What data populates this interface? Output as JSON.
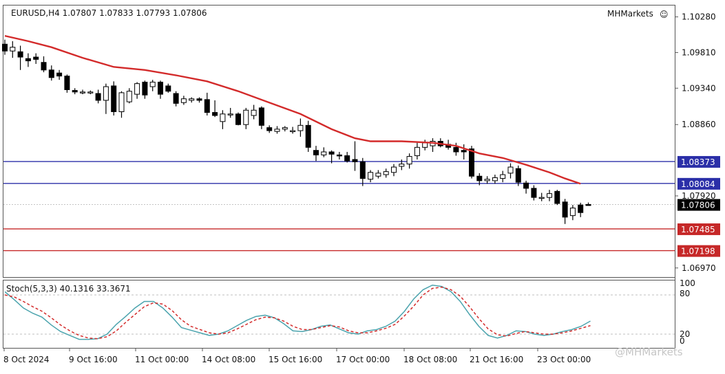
{
  "header": {
    "symbol_info": "EURUSD,H4  1.07807 1.07833 1.07793 1.07806",
    "broker": "MHMarkets",
    "smiley": "☺"
  },
  "watermark": "@MHMarkets",
  "colors": {
    "bull": "#ffffff",
    "bear": "#000000",
    "ma": "#d32a2a",
    "resistance": "#2b2fa8",
    "support": "#c62828",
    "current": "#b0b0b0",
    "stoch_main": "#4aa3ad",
    "stoch_signal": "#d32a2a"
  },
  "chart_data": [
    {
      "type": "candlestick",
      "title": "EURUSD,H4",
      "ohlc_header": {
        "open": 1.07807,
        "high": 1.07833,
        "low": 1.07793,
        "close": 1.07806
      },
      "ylim": [
        1.0685,
        1.1043
      ],
      "y_ticks": [
        "1.10280",
        "1.09810",
        "1.09340",
        "1.08860",
        "1.07920",
        "1.06970"
      ],
      "x_ticks": [
        "8 Oct 2024",
        "9 Oct 16:00",
        "11 Oct 00:00",
        "14 Oct 08:00",
        "15 Oct 16:00",
        "17 Oct 00:00",
        "18 Oct 08:00",
        "21 Oct 16:00",
        "23 Oct 00:00"
      ],
      "candles": [
        [
          1.0992,
          1.0998,
          1.0978,
          1.0983
        ],
        [
          1.0983,
          1.0996,
          1.0974,
          1.0988
        ],
        [
          1.0982,
          1.099,
          1.0958,
          1.0975
        ],
        [
          1.0973,
          1.098,
          1.0962,
          1.097
        ],
        [
          1.0975,
          1.098,
          1.0966,
          1.0972
        ],
        [
          1.0968,
          1.0976,
          1.0955,
          1.0958
        ],
        [
          1.0958,
          1.0964,
          1.0944,
          1.0948
        ],
        [
          1.0954,
          1.0958,
          1.0945,
          1.095
        ],
        [
          1.095,
          1.0952,
          1.0928,
          1.0932
        ],
        [
          1.0931,
          1.0934,
          1.0926,
          1.0929
        ],
        [
          1.0929,
          1.0932,
          1.0926,
          1.0929
        ],
        [
          1.0929,
          1.0931,
          1.0926,
          1.0929
        ],
        [
          1.0927,
          1.0932,
          1.0914,
          1.0918
        ],
        [
          1.0918,
          1.094,
          1.09,
          1.0936
        ],
        [
          1.0937,
          1.0943,
          1.0898,
          1.0903
        ],
        [
          1.0903,
          1.093,
          1.0895,
          1.0928
        ],
        [
          1.0916,
          1.0934,
          1.0914,
          1.093
        ],
        [
          1.0926,
          1.0942,
          1.092,
          1.094
        ],
        [
          1.0942,
          1.0944,
          1.092,
          1.0925
        ],
        [
          1.0936,
          1.0945,
          1.093,
          1.0942
        ],
        [
          1.0942,
          1.0944,
          1.092,
          1.0926
        ],
        [
          1.0937,
          1.094,
          1.0928,
          1.093
        ],
        [
          1.0927,
          1.093,
          1.091,
          1.0914
        ],
        [
          1.0915,
          1.0924,
          1.0912,
          1.092
        ],
        [
          1.0918,
          1.0922,
          1.0915,
          1.092
        ],
        [
          1.092,
          1.0922,
          1.0915,
          1.0918
        ],
        [
          1.0919,
          1.0928,
          1.0898,
          1.0902
        ],
        [
          1.0902,
          1.0918,
          1.0896,
          1.0898
        ],
        [
          1.089,
          1.0905,
          1.088,
          1.09
        ],
        [
          1.09,
          1.0908,
          1.0895,
          1.09
        ],
        [
          1.09,
          1.0902,
          1.0885,
          1.0886
        ],
        [
          1.0886,
          1.0908,
          1.088,
          1.0905
        ],
        [
          1.0898,
          1.0912,
          1.0893,
          1.0905
        ],
        [
          1.0908,
          1.091,
          1.088,
          1.0885
        ],
        [
          1.0882,
          1.0885,
          1.0875,
          1.0878
        ],
        [
          1.0877,
          1.0884,
          1.0874,
          1.088
        ],
        [
          1.088,
          1.0884,
          1.0877,
          1.0882
        ],
        [
          1.0877,
          1.0883,
          1.0874,
          1.0878
        ],
        [
          1.0878,
          1.0894,
          1.087,
          1.0885
        ],
        [
          1.0885,
          1.0891,
          1.085,
          1.0856
        ],
        [
          1.0852,
          1.0858,
          1.0838,
          1.0846
        ],
        [
          1.0846,
          1.0856,
          1.0843,
          1.085
        ],
        [
          1.085,
          1.0852,
          1.0835,
          1.0847
        ],
        [
          1.0846,
          1.085,
          1.084,
          1.0845
        ],
        [
          1.0845,
          1.085,
          1.0836,
          1.0838
        ],
        [
          1.084,
          1.0864,
          1.0825,
          1.0837
        ],
        [
          1.0837,
          1.0842,
          1.0805,
          1.0815
        ],
        [
          1.0814,
          1.0826,
          1.081,
          1.0823
        ],
        [
          1.0818,
          1.0826,
          1.0815,
          1.0822
        ],
        [
          1.082,
          1.0828,
          1.0816,
          1.0824
        ],
        [
          1.0823,
          1.0834,
          1.0818,
          1.083
        ],
        [
          1.0831,
          1.084,
          1.0826,
          1.0834
        ],
        [
          1.0834,
          1.0848,
          1.0828,
          1.0844
        ],
        [
          1.0845,
          1.0862,
          1.084,
          1.0856
        ],
        [
          1.0856,
          1.0866,
          1.0852,
          1.0862
        ],
        [
          1.0858,
          1.0868,
          1.085,
          1.0864
        ],
        [
          1.0864,
          1.0868,
          1.0856,
          1.0858
        ],
        [
          1.086,
          1.0866,
          1.0853,
          1.0856
        ],
        [
          1.0856,
          1.0862,
          1.0845,
          1.085
        ],
        [
          1.0852,
          1.086,
          1.084,
          1.085
        ],
        [
          1.0854,
          1.0858,
          1.0815,
          1.0818
        ],
        [
          1.0818,
          1.0822,
          1.0806,
          1.0812
        ],
        [
          1.0812,
          1.0818,
          1.0808,
          1.0814
        ],
        [
          1.0812,
          1.082,
          1.0808,
          1.0816
        ],
        [
          1.0815,
          1.0825,
          1.081,
          1.082
        ],
        [
          1.0822,
          1.0835,
          1.0815,
          1.083
        ],
        [
          1.0828,
          1.0832,
          1.0805,
          1.081
        ],
        [
          1.0809,
          1.0812,
          1.0795,
          1.0802
        ],
        [
          1.0802,
          1.0806,
          1.0786,
          1.079
        ],
        [
          1.0789,
          1.0796,
          1.0785,
          1.079
        ],
        [
          1.079,
          1.08,
          1.0785,
          1.0795
        ],
        [
          1.0798,
          1.08,
          1.078,
          1.0782
        ],
        [
          1.0784,
          1.0788,
          1.0755,
          1.0764
        ],
        [
          1.0766,
          1.078,
          1.076,
          1.0776
        ],
        [
          1.078,
          1.0783,
          1.0764,
          1.077
        ],
        [
          1.07807,
          1.07833,
          1.07793,
          1.07806
        ]
      ],
      "ma": [
        [
          0,
          1.1003
        ],
        [
          3,
          1.0996
        ],
        [
          6,
          1.0988
        ],
        [
          10,
          1.0974
        ],
        [
          14,
          1.0962
        ],
        [
          18,
          1.0958
        ],
        [
          22,
          1.0951
        ],
        [
          26,
          1.0943
        ],
        [
          30,
          1.093
        ],
        [
          34,
          1.0915
        ],
        [
          38,
          1.09
        ],
        [
          42,
          1.088
        ],
        [
          45,
          1.0868
        ],
        [
          47,
          1.0864
        ],
        [
          51,
          1.0864
        ],
        [
          55,
          1.0862
        ],
        [
          58,
          1.0858
        ],
        [
          61,
          1.0848
        ],
        [
          64,
          1.0842
        ],
        [
          67,
          1.0833
        ],
        [
          70,
          1.0823
        ],
        [
          72,
          1.0815
        ],
        [
          74,
          1.0808
        ]
      ],
      "levels": [
        {
          "label": "1.08373",
          "value": 1.08373,
          "role": "resistance"
        },
        {
          "label": "1.08084",
          "value": 1.08084,
          "role": "resistance"
        },
        {
          "label": "1.07806",
          "value": 1.07806,
          "role": "current"
        },
        {
          "label": "1.07485",
          "value": 1.07485,
          "role": "support"
        },
        {
          "label": "1.07198",
          "value": 1.07198,
          "role": "support"
        }
      ]
    },
    {
      "type": "line",
      "title": "Stoch(5,3,3) 40.1316 33.3671",
      "ylim": [
        0,
        100
      ],
      "y_ticks": [
        "100",
        "80",
        "20",
        "0"
      ],
      "reference_levels": [
        80,
        20
      ],
      "series": [
        {
          "name": "main",
          "values": [
            [
              0,
              85
            ],
            [
              2,
              73
            ],
            [
              4,
              60
            ],
            [
              6,
              52
            ],
            [
              8,
              46
            ],
            [
              10,
              34
            ],
            [
              12,
              24
            ],
            [
              14,
              18
            ],
            [
              16,
              12
            ],
            [
              18,
              12
            ],
            [
              20,
              13
            ],
            [
              22,
              20
            ],
            [
              24,
              35
            ],
            [
              26,
              47
            ],
            [
              28,
              60
            ],
            [
              30,
              70
            ],
            [
              32,
              70
            ],
            [
              34,
              60
            ],
            [
              36,
              46
            ],
            [
              38,
              30
            ],
            [
              40,
              26
            ],
            [
              42,
              22
            ],
            [
              44,
              18
            ],
            [
              46,
              20
            ],
            [
              48,
              25
            ],
            [
              50,
              33
            ],
            [
              52,
              41
            ],
            [
              54,
              47
            ],
            [
              56,
              49
            ],
            [
              58,
              45
            ],
            [
              60,
              36
            ],
            [
              62,
              25
            ],
            [
              64,
              24
            ],
            [
              66,
              27
            ],
            [
              68,
              32
            ],
            [
              70,
              34
            ],
            [
              72,
              28
            ],
            [
              74,
              22
            ],
            [
              76,
              20
            ],
            [
              78,
              25
            ],
            [
              80,
              27
            ],
            [
              82,
              32
            ],
            [
              84,
              40
            ],
            [
              86,
              55
            ],
            [
              88,
              74
            ],
            [
              90,
              88
            ],
            [
              92,
              95
            ],
            [
              94,
              93
            ],
            [
              96,
              85
            ],
            [
              98,
              70
            ],
            [
              100,
              50
            ],
            [
              102,
              32
            ],
            [
              104,
              18
            ],
            [
              106,
              14
            ],
            [
              108,
              18
            ],
            [
              110,
              25
            ],
            [
              112,
              24
            ],
            [
              114,
              20
            ],
            [
              116,
              18
            ],
            [
              118,
              20
            ],
            [
              120,
              24
            ],
            [
              122,
              27
            ],
            [
              124,
              32
            ],
            [
              126,
              40
            ]
          ]
        },
        {
          "name": "signal",
          "values": [
            [
              0,
              80
            ],
            [
              2,
              77
            ],
            [
              4,
              70
            ],
            [
              6,
              62
            ],
            [
              8,
              55
            ],
            [
              10,
              45
            ],
            [
              12,
              34
            ],
            [
              14,
              25
            ],
            [
              16,
              18
            ],
            [
              18,
              14
            ],
            [
              20,
              13
            ],
            [
              22,
              16
            ],
            [
              24,
              25
            ],
            [
              26,
              38
            ],
            [
              28,
              50
            ],
            [
              30,
              62
            ],
            [
              32,
              68
            ],
            [
              34,
              66
            ],
            [
              36,
              56
            ],
            [
              38,
              42
            ],
            [
              40,
              32
            ],
            [
              42,
              27
            ],
            [
              44,
              22
            ],
            [
              46,
              20
            ],
            [
              48,
              22
            ],
            [
              50,
              28
            ],
            [
              52,
              35
            ],
            [
              54,
              42
            ],
            [
              56,
              46
            ],
            [
              58,
              45
            ],
            [
              60,
              40
            ],
            [
              62,
              32
            ],
            [
              64,
              27
            ],
            [
              66,
              27
            ],
            [
              68,
              30
            ],
            [
              70,
              33
            ],
            [
              72,
              31
            ],
            [
              74,
              25
            ],
            [
              76,
              22
            ],
            [
              78,
              22
            ],
            [
              80,
              25
            ],
            [
              82,
              29
            ],
            [
              84,
              35
            ],
            [
              86,
              48
            ],
            [
              88,
              63
            ],
            [
              90,
              80
            ],
            [
              92,
              90
            ],
            [
              94,
              92
            ],
            [
              96,
              88
            ],
            [
              98,
              78
            ],
            [
              100,
              62
            ],
            [
              102,
              44
            ],
            [
              104,
              28
            ],
            [
              106,
              19
            ],
            [
              108,
              17
            ],
            [
              110,
              21
            ],
            [
              112,
              24
            ],
            [
              114,
              22
            ],
            [
              116,
              20
            ],
            [
              118,
              20
            ],
            [
              120,
              22
            ],
            [
              122,
              25
            ],
            [
              124,
              29
            ],
            [
              126,
              33
            ]
          ]
        }
      ]
    }
  ]
}
